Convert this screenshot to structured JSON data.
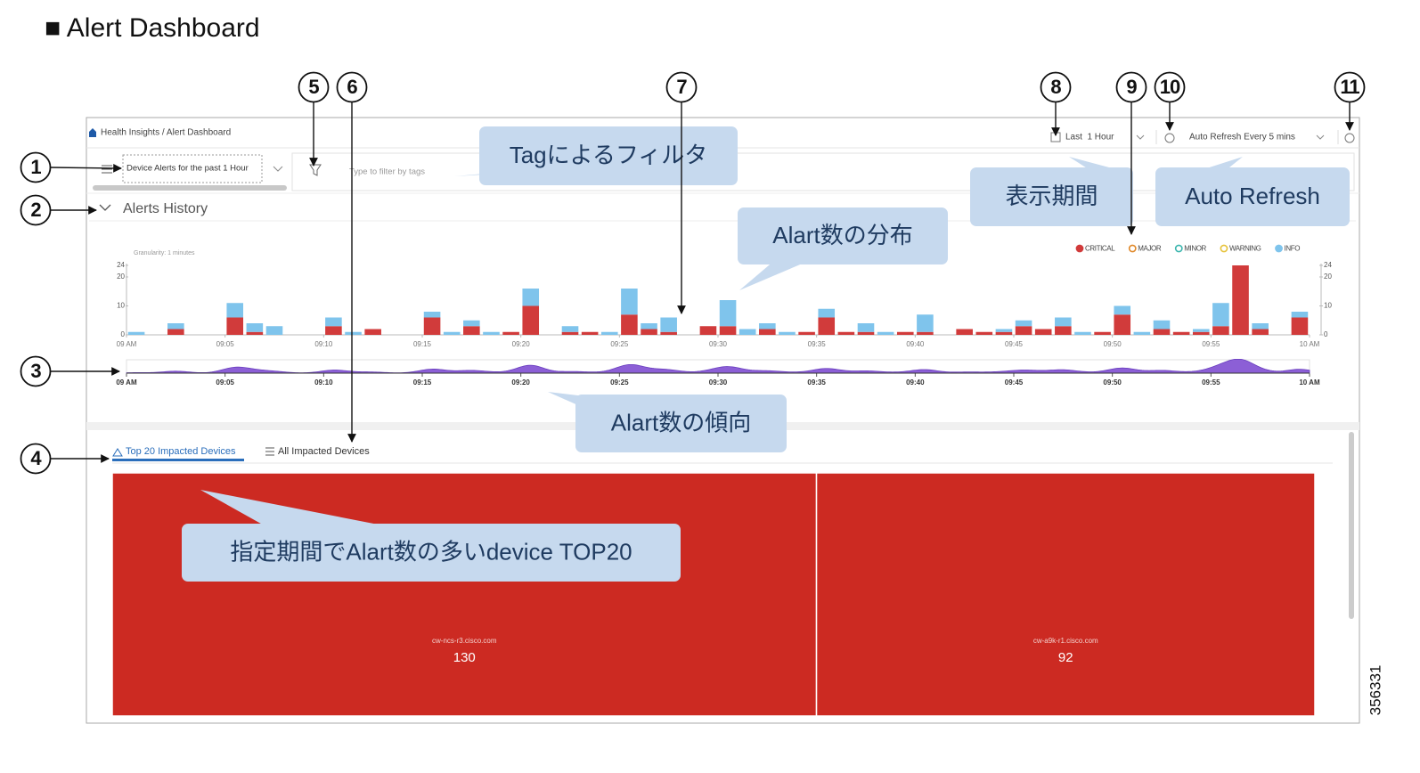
{
  "heading": "■ Alert Dashboard",
  "breadcrumb": "Health Insights / Alert Dashboard",
  "filter": {
    "dropdown": "Device Alerts for the past 1 Hour",
    "placeholder": "Type to filter by tags"
  },
  "time_range": "Last  1 Hour",
  "auto_refresh": "Auto Refresh Every 5 mins",
  "section_title": "Alerts History",
  "granularity": "Granularity: 1 minutes",
  "chart_data": {
    "type": "bar",
    "stacked": true,
    "legend": "top-right",
    "x": [
      0,
      1,
      2,
      3,
      4,
      5,
      6,
      7,
      8,
      9,
      10,
      11,
      12,
      13,
      14,
      15,
      16,
      17,
      18,
      19,
      20,
      21,
      22,
      23,
      24,
      25,
      26,
      27,
      28,
      29,
      30,
      31,
      32,
      33,
      34,
      35,
      36,
      37,
      38,
      39,
      40,
      41,
      42,
      43,
      44,
      45,
      46,
      47,
      48,
      49,
      50,
      51,
      52,
      53,
      54,
      55,
      56,
      57,
      58,
      59
    ],
    "xlim": [
      0,
      60
    ],
    "xticks": [
      {
        "value": 0,
        "label": "09 AM"
      },
      {
        "value": 5,
        "label": "09:05"
      },
      {
        "value": 10,
        "label": "09:10"
      },
      {
        "value": 15,
        "label": "09:15"
      },
      {
        "value": 20,
        "label": "09:20"
      },
      {
        "value": 25,
        "label": "09:25"
      },
      {
        "value": 30,
        "label": "09:30"
      },
      {
        "value": 35,
        "label": "09:35"
      },
      {
        "value": 40,
        "label": "09:40"
      },
      {
        "value": 45,
        "label": "09:45"
      },
      {
        "value": 50,
        "label": "09:50"
      },
      {
        "value": 55,
        "label": "09:55"
      },
      {
        "value": 60,
        "label": "10 AM"
      }
    ],
    "ylim": [
      0,
      24
    ],
    "yticks": [
      0,
      10,
      20,
      24
    ],
    "series": [
      {
        "name": "CRITICAL",
        "color": "#d13b3b",
        "legend_marker": "filled",
        "values": [
          0,
          0,
          2,
          0,
          0,
          6,
          1,
          0,
          0,
          0,
          3,
          0,
          2,
          0,
          0,
          6,
          0,
          3,
          0,
          1,
          10,
          0,
          1,
          1,
          0,
          7,
          2,
          1,
          0,
          3,
          3,
          0,
          2,
          0,
          1,
          6,
          1,
          1,
          0,
          1,
          1,
          0,
          2,
          1,
          1,
          3,
          2,
          3,
          0,
          1,
          7,
          0,
          2,
          1,
          1,
          3,
          24,
          2,
          0,
          6
        ]
      },
      {
        "name": "MAJOR",
        "color": "#e0892a",
        "legend_marker": "ring",
        "values": [
          0,
          0,
          0,
          0,
          0,
          0,
          0,
          0,
          0,
          0,
          0,
          0,
          0,
          0,
          0,
          0,
          0,
          0,
          0,
          0,
          0,
          0,
          0,
          0,
          0,
          0,
          0,
          0,
          0,
          0,
          0,
          0,
          0,
          0,
          0,
          0,
          0,
          0,
          0,
          0,
          0,
          0,
          0,
          0,
          0,
          0,
          0,
          0,
          0,
          0,
          0,
          0,
          0,
          0,
          0,
          0,
          0,
          0,
          0,
          0
        ]
      },
      {
        "name": "MINOR",
        "color": "#3bb6ae",
        "legend_marker": "ring",
        "values": [
          0,
          0,
          0,
          0,
          0,
          0,
          0,
          0,
          0,
          0,
          0,
          0,
          0,
          0,
          0,
          0,
          0,
          0,
          0,
          0,
          0,
          0,
          0,
          0,
          0,
          0,
          0,
          0,
          0,
          0,
          0,
          0,
          0,
          0,
          0,
          0,
          0,
          0,
          0,
          0,
          0,
          0,
          0,
          0,
          0,
          0,
          0,
          0,
          0,
          0,
          0,
          0,
          0,
          0,
          0,
          0,
          0,
          0,
          0,
          0
        ]
      },
      {
        "name": "WARNING",
        "color": "#e6c23a",
        "legend_marker": "ring",
        "values": [
          0,
          0,
          0,
          0,
          0,
          0,
          0,
          0,
          0,
          0,
          0,
          0,
          0,
          0,
          0,
          0,
          0,
          0,
          0,
          0,
          0,
          0,
          0,
          0,
          0,
          0,
          0,
          0,
          0,
          0,
          0,
          0,
          0,
          0,
          0,
          0,
          0,
          0,
          0,
          0,
          0,
          0,
          0,
          0,
          0,
          0,
          0,
          0,
          0,
          0,
          0,
          0,
          0,
          0,
          0,
          0,
          0,
          0,
          0,
          0
        ]
      },
      {
        "name": "INFO",
        "color": "#7fc4ec",
        "legend_marker": "filled",
        "values": [
          1,
          0,
          2,
          0,
          0,
          5,
          3,
          3,
          0,
          0,
          3,
          1,
          0,
          0,
          0,
          2,
          1,
          2,
          1,
          0,
          6,
          0,
          2,
          0,
          1,
          9,
          2,
          5,
          0,
          0,
          9,
          2,
          2,
          1,
          0,
          3,
          0,
          3,
          1,
          0,
          6,
          0,
          0,
          0,
          1,
          2,
          0,
          3,
          1,
          0,
          3,
          1,
          3,
          0,
          1,
          8,
          0,
          2,
          0,
          2
        ]
      }
    ]
  },
  "tabs": [
    "Top 20 Impacted Devices",
    "All Impacted Devices"
  ],
  "treemap": {
    "color": "#cc2a22",
    "items": [
      {
        "label": "cw-ncs-r3.cisco.com",
        "value": 130
      },
      {
        "label": "cw-a9k-r1.cisco.com",
        "value": 92
      }
    ]
  },
  "callouts": [
    "Tagによるフィルタ",
    "表示期間",
    "Auto Refresh",
    "Alart数の分布",
    "Alart数の傾向",
    "指定期間でAlart数の多いdevice TOP20"
  ],
  "markers": [
    "1",
    "2",
    "3",
    "4",
    "5",
    "6",
    "7",
    "8",
    "9",
    "10",
    "11"
  ],
  "figure_id": "356331"
}
